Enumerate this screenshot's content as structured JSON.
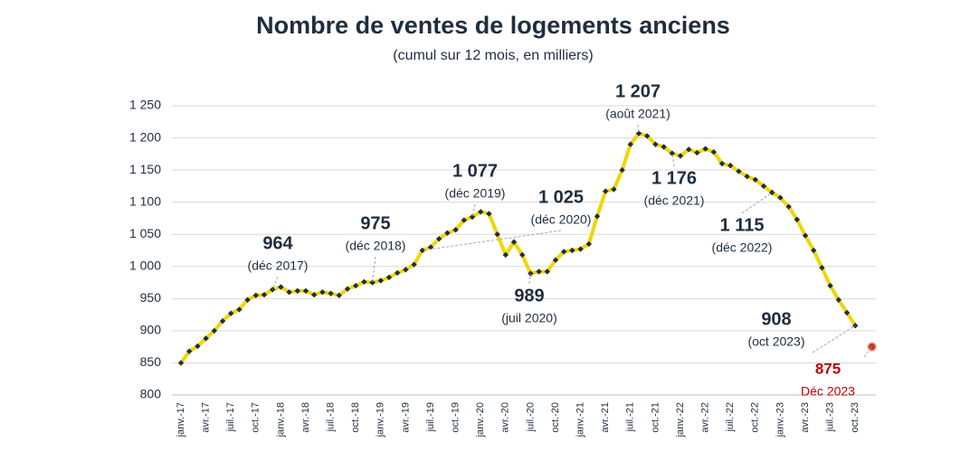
{
  "chart_data": {
    "type": "line",
    "title": "Nombre de ventes de logements anciens",
    "subtitle": "(cumul sur 12 mois, en milliers)",
    "categories": [
      "janv.-17",
      null,
      null,
      "avr.-17",
      null,
      null,
      "juil.-17",
      null,
      null,
      "oct.-17",
      null,
      null,
      "janv.-18",
      null,
      null,
      "avr.-18",
      null,
      null,
      "juil.-18",
      null,
      null,
      "oct.-18",
      null,
      null,
      "janv.-19",
      null,
      null,
      "avr.-19",
      null,
      null,
      "juil.-19",
      null,
      null,
      "oct.-19",
      null,
      null,
      "janv.-20",
      null,
      null,
      "avr.-20",
      null,
      null,
      "juil.-20",
      null,
      null,
      "oct.-20",
      null,
      null,
      "janv.-21",
      null,
      null,
      "avr.-21",
      null,
      null,
      "juil.-21",
      null,
      null,
      "oct.-21",
      null,
      null,
      "janv.-22",
      null,
      null,
      "avr.-22",
      null,
      null,
      "juil.-22",
      null,
      null,
      "oct.-22",
      null,
      null,
      "janv.-23",
      null,
      null,
      "avr.-23",
      null,
      null,
      "juil.-23",
      null,
      null,
      "oct.-23",
      null,
      null
    ],
    "series": [
      {
        "color": "#f2d600",
        "marker_color": "#1f2d3d",
        "values": [
          850,
          868,
          876,
          888,
          900,
          915,
          927,
          933,
          948,
          955,
          956,
          964,
          968,
          960,
          962,
          962,
          956,
          960,
          958,
          955,
          965,
          970,
          976,
          975,
          978,
          983,
          990,
          995,
          1003,
          1025,
          1030,
          1043,
          1052,
          1057,
          1072,
          1077,
          1085,
          1082,
          1050,
          1018,
          1038,
          1018,
          989,
          992,
          992,
          1010,
          1023,
          1025,
          1027,
          1035,
          1078,
          1117,
          1120,
          1150,
          1190,
          1207,
          1203,
          1190,
          1186,
          1176,
          1172,
          1182,
          1177,
          1183,
          1178,
          1160,
          1157,
          1148,
          1140,
          1135,
          1125,
          1115,
          1107,
          1093,
          1073,
          1048,
          1025,
          998,
          970,
          948,
          928,
          908,
          null,
          null
        ]
      },
      {
        "color": "#c0392b",
        "values": [
          null,
          null,
          null,
          null,
          null,
          null,
          null,
          null,
          null,
          null,
          null,
          null,
          null,
          null,
          null,
          null,
          null,
          null,
          null,
          null,
          null,
          null,
          null,
          null,
          null,
          null,
          null,
          null,
          null,
          null,
          null,
          null,
          null,
          null,
          null,
          null,
          null,
          null,
          null,
          null,
          null,
          null,
          null,
          null,
          null,
          null,
          null,
          null,
          null,
          null,
          null,
          null,
          null,
          null,
          null,
          null,
          null,
          null,
          null,
          null,
          null,
          null,
          null,
          null,
          null,
          null,
          null,
          null,
          null,
          null,
          null,
          null,
          null,
          null,
          null,
          null,
          null,
          null,
          null,
          null,
          null,
          null,
          null,
          875
        ]
      }
    ],
    "annotations": [
      {
        "value": 964,
        "date": "(déc 2017)"
      },
      {
        "value": 975,
        "date": "(déc 2018)"
      },
      {
        "value": 1077,
        "label": "1 077",
        "date": "(déc 2019)"
      },
      {
        "value": 989,
        "date": "(juil 2020)"
      },
      {
        "value": 1025,
        "label": "1 025",
        "date": "(déc 2020)"
      },
      {
        "value": 1207,
        "label": "1 207",
        "date": "(août 2021)"
      },
      {
        "value": 1176,
        "label": "1 176",
        "date": "(déc 2021)"
      },
      {
        "value": 1115,
        "label": "1 115",
        "date": "(déc 2022)"
      },
      {
        "value": 908,
        "date": "(oct 2023)"
      },
      {
        "value": 875,
        "date": "Déc 2023"
      }
    ],
    "ylim": [
      800,
      1250
    ],
    "yticks": [
      800,
      850,
      900,
      950,
      {
        "value": 1000,
        "label": "1 000"
      },
      {
        "value": 1050,
        "label": "1 050"
      },
      {
        "value": 1100,
        "label": "1 100"
      },
      {
        "value": 1150,
        "label": "1 150"
      },
      {
        "value": 1200,
        "label": "1 200"
      },
      {
        "value": 1250,
        "label": "1 250"
      }
    ],
    "grid": true
  }
}
